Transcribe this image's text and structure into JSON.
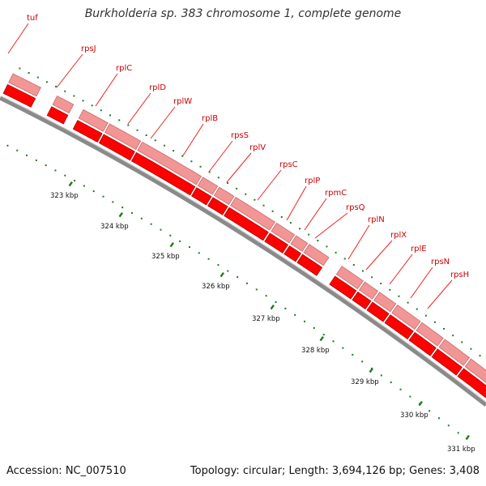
{
  "title": "Burkholderia sp. 383 chromosome 1, complete genome",
  "accession_label": "Accession: NC_007510",
  "summary_label": "Topology: circular; Length: 3,694,126 bp; Genes: 3,408",
  "colors": {
    "gene_label": "#cc0000",
    "leader_line": "#ee2222",
    "pink_block": "#f19595",
    "red_block": "#ff0000",
    "backbone": "#8a8a8a",
    "tick": "#1f7a1f"
  },
  "genes": [
    "tuf",
    "rpsJ",
    "rplC",
    "rplD",
    "rplW",
    "rplB",
    "rpsS",
    "rplV",
    "rpsC",
    "rplP",
    "rpmC",
    "rpsQ",
    "rplN",
    "rplX",
    "rplE",
    "rpsN",
    "rpsH"
  ],
  "scale_labels": [
    "323 kbp",
    "324 kbp",
    "325 kbp",
    "326 kbp",
    "327 kbp",
    "328 kbp",
    "329 kbp",
    "330 kbp",
    "331 kbp"
  ]
}
